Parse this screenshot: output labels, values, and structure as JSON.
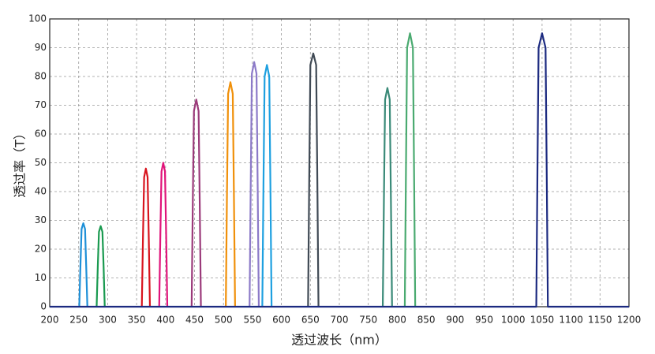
{
  "chart_data": {
    "type": "line",
    "xlabel": "透过波长（nm）",
    "ylabel": "透过率（T）",
    "xlim": [
      200,
      1200
    ],
    "xticks": [
      200,
      250,
      300,
      350,
      400,
      450,
      500,
      550,
      600,
      650,
      700,
      750,
      800,
      850,
      900,
      950,
      1000,
      1050,
      1100,
      1150,
      1200
    ],
    "ylim": [
      0,
      100
    ],
    "yticks": [
      0,
      10,
      20,
      30,
      40,
      50,
      60,
      70,
      80,
      90,
      100
    ],
    "grid": true,
    "series": [
      {
        "color": "#1e90d8",
        "x": [
          251,
          253,
          255,
          258,
          261,
          263,
          265
        ],
        "values": [
          0,
          14,
          27,
          29,
          27,
          14,
          0
        ]
      },
      {
        "color": "#1a9a50",
        "x": [
          281,
          283,
          285,
          288,
          291,
          293,
          295
        ],
        "values": [
          0,
          14,
          26,
          28,
          26,
          14,
          0
        ]
      },
      {
        "color": "#d8141e",
        "x": [
          359,
          361,
          363,
          366,
          369,
          371,
          373
        ],
        "values": [
          0,
          24,
          45,
          48,
          45,
          24,
          0
        ]
      },
      {
        "color": "#e0147a",
        "x": [
          389,
          391,
          393,
          396,
          399,
          401,
          403
        ],
        "values": [
          0,
          25,
          47,
          50,
          47,
          25,
          0
        ]
      },
      {
        "color": "#9b3a7a",
        "x": [
          445,
          447,
          449,
          453,
          457,
          459,
          461
        ],
        "values": [
          0,
          36,
          68,
          72,
          68,
          36,
          0
        ]
      },
      {
        "color": "#f0900a",
        "x": [
          504,
          506,
          508,
          512,
          516,
          518,
          520
        ],
        "values": [
          0,
          39,
          74,
          78,
          74,
          39,
          0
        ]
      },
      {
        "color": "#8c7ac8",
        "x": [
          545,
          547,
          549,
          553,
          557,
          559,
          561
        ],
        "values": [
          0,
          42,
          81,
          85,
          81,
          42,
          0
        ]
      },
      {
        "color": "#1ea0e0",
        "x": [
          567,
          569,
          571,
          575,
          579,
          581,
          583
        ],
        "values": [
          0,
          42,
          80,
          84,
          80,
          42,
          0
        ]
      },
      {
        "color": "#404a55",
        "x": [
          646,
          648,
          650,
          655,
          660,
          662,
          664
        ],
        "values": [
          0,
          44,
          84,
          88,
          84,
          44,
          0
        ]
      },
      {
        "color": "#3a8a78",
        "x": [
          775,
          777,
          779,
          783,
          787,
          789,
          791
        ],
        "values": [
          0,
          38,
          72,
          76,
          72,
          38,
          0
        ]
      },
      {
        "color": "#4aaa70",
        "x": [
          813,
          815,
          817,
          822,
          827,
          829,
          831
        ],
        "values": [
          0,
          47,
          90,
          95,
          90,
          47,
          0
        ]
      },
      {
        "color": "#1c2a80",
        "x": [
          200,
          1040,
          1042,
          1044,
          1050,
          1056,
          1058,
          1060,
          1200
        ],
        "values": [
          0,
          0,
          47,
          90,
          95,
          90,
          47,
          0,
          0
        ]
      }
    ]
  }
}
